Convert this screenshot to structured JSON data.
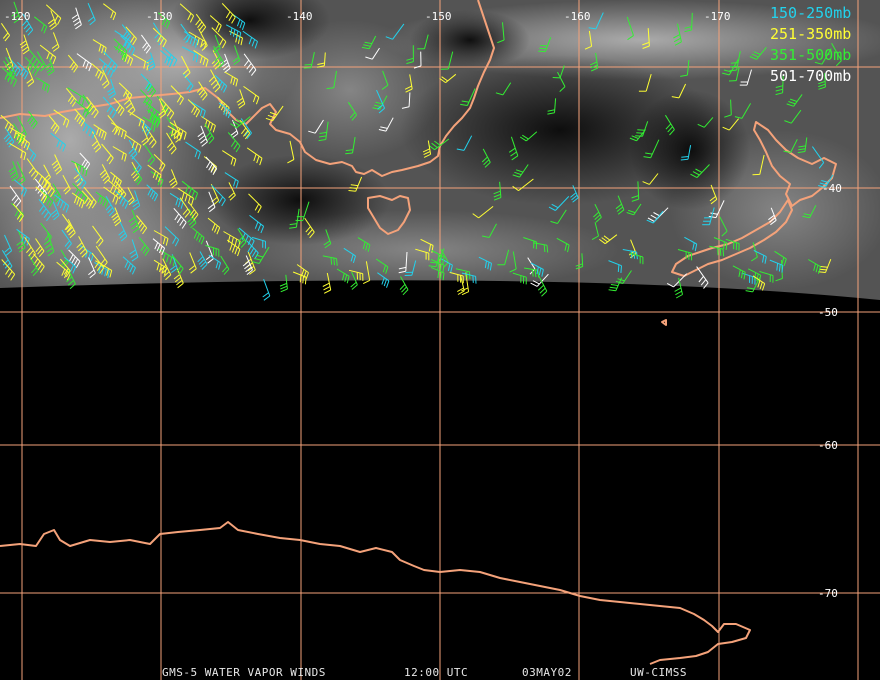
{
  "map": {
    "longitude_labels": [
      "-120",
      "-130",
      "-140",
      "-150",
      "-160",
      "-170"
    ],
    "latitude_labels": [
      "-40",
      "-50",
      "-60",
      "-70"
    ],
    "colors": {
      "background": "#000000",
      "graticule": "#f4a27a",
      "coastline": "#f4a27a"
    }
  },
  "legend": [
    {
      "label": "150-250mb",
      "color": "#22d3ee"
    },
    {
      "label": "251-350mb",
      "color": "#ffff33"
    },
    {
      "label": "351-500mb",
      "color": "#33ee33"
    },
    {
      "label": "501-700mb",
      "color": "#ffffff"
    }
  ],
  "footer": {
    "product": "GMS-5 WATER VAPOR WINDS",
    "time": "12:00 UTC",
    "date": "03MAY02",
    "source": "UW-CIMSS"
  },
  "icons": {
    "wind_barb": "wind-barb-icon"
  }
}
